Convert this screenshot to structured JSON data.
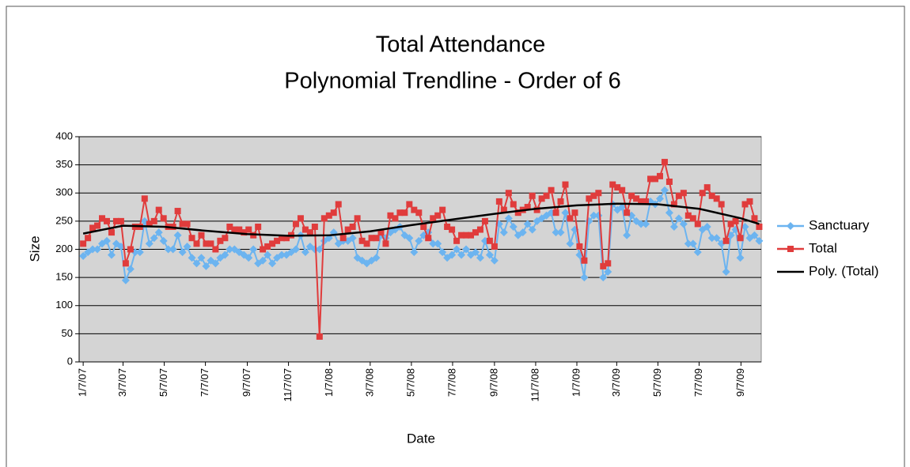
{
  "chart_data": {
    "type": "line",
    "title": "Total Attendance",
    "subtitle": "Polynomial Trendline - Order of 6",
    "x_label": "Date",
    "y_label": "Size",
    "x": [
      "1/7/07",
      "1/14/07",
      "1/21/07",
      "1/28/07",
      "2/4/07",
      "2/11/07",
      "2/18/07",
      "2/25/07",
      "3/4/07",
      "3/11/07",
      "3/18/07",
      "3/25/07",
      "4/1/07",
      "4/8/07",
      "4/15/07",
      "4/22/07",
      "4/29/07",
      "5/6/07",
      "5/13/07",
      "5/20/07",
      "5/27/07",
      "6/3/07",
      "6/10/07",
      "6/17/07",
      "6/24/07",
      "7/1/07",
      "7/8/07",
      "7/15/07",
      "7/22/07",
      "7/29/07",
      "8/5/07",
      "8/12/07",
      "8/19/07",
      "8/26/07",
      "9/2/07",
      "9/9/07",
      "9/16/07",
      "9/23/07",
      "9/30/07",
      "10/7/07",
      "10/14/07",
      "10/21/07",
      "10/28/07",
      "11/4/07",
      "11/11/07",
      "11/18/07",
      "11/25/07",
      "12/2/07",
      "12/9/07",
      "12/16/07",
      "12/23/07",
      "12/30/07",
      "1/6/08",
      "1/13/08",
      "1/20/08",
      "1/27/08",
      "2/3/08",
      "2/10/08",
      "2/17/08",
      "2/24/08",
      "3/2/08",
      "3/9/08",
      "3/16/08",
      "3/23/08",
      "3/30/08",
      "4/6/08",
      "4/13/08",
      "4/20/08",
      "4/27/08",
      "5/4/08",
      "5/11/08",
      "5/18/08",
      "5/25/08",
      "6/1/08",
      "6/8/08",
      "6/15/08",
      "6/22/08",
      "6/29/08",
      "7/6/08",
      "7/13/08",
      "7/20/08",
      "7/27/08",
      "8/3/08",
      "8/10/08",
      "8/17/08",
      "8/24/08",
      "8/31/08",
      "9/7/08",
      "9/14/08",
      "9/21/08",
      "9/28/08",
      "10/5/08",
      "10/12/08",
      "10/19/08",
      "10/26/08",
      "11/2/08",
      "11/9/08",
      "11/16/08",
      "11/23/08",
      "11/30/08",
      "12/7/08",
      "12/14/08",
      "12/21/08",
      "12/28/08",
      "1/4/09",
      "1/11/09",
      "1/18/09",
      "1/25/09",
      "2/1/09",
      "2/8/09",
      "2/15/09",
      "2/22/09",
      "3/1/09",
      "3/8/09",
      "3/15/09",
      "3/22/09",
      "3/29/09",
      "4/5/09",
      "4/12/09",
      "4/19/09",
      "4/26/09",
      "5/3/09",
      "5/10/09",
      "5/17/09",
      "5/24/09",
      "5/31/09",
      "6/7/09",
      "6/14/09",
      "6/21/09",
      "6/28/09",
      "7/5/09",
      "7/12/09",
      "7/19/09",
      "7/26/09",
      "8/2/09",
      "8/9/09",
      "8/16/09",
      "8/23/09",
      "8/30/09",
      "9/6/09",
      "9/13/09",
      "9/20/09",
      "9/27/09",
      "10/4/09"
    ],
    "series": [
      {
        "name": "Sanctuary",
        "color": "#6cb4f0",
        "marker": "diamond",
        "values": [
          188,
          195,
          200,
          200,
          210,
          215,
          190,
          210,
          205,
          145,
          165,
          195,
          195,
          250,
          210,
          220,
          230,
          215,
          200,
          200,
          225,
          195,
          205,
          185,
          175,
          185,
          170,
          180,
          175,
          185,
          190,
          200,
          200,
          195,
          190,
          185,
          200,
          175,
          180,
          190,
          175,
          185,
          190,
          190,
          195,
          200,
          225,
          195,
          205,
          200,
          200,
          215,
          220,
          230,
          210,
          215,
          215,
          220,
          185,
          180,
          175,
          180,
          185,
          225,
          220,
          230,
          235,
          240,
          225,
          220,
          195,
          215,
          225,
          230,
          210,
          210,
          195,
          185,
          190,
          200,
          190,
          200,
          190,
          195,
          185,
          215,
          190,
          180,
          245,
          230,
          255,
          240,
          225,
          230,
          245,
          235,
          250,
          255,
          260,
          265,
          230,
          230,
          265,
          210,
          235,
          190,
          150,
          250,
          260,
          260,
          150,
          160,
          280,
          270,
          275,
          225,
          260,
          250,
          245,
          245,
          285,
          280,
          290,
          305,
          265,
          240,
          255,
          245,
          210,
          210,
          195,
          235,
          240,
          220,
          220,
          210,
          160,
          225,
          235,
          185,
          240,
          220,
          225,
          215
        ]
      },
      {
        "name": "Total",
        "color": "#e03c3c",
        "marker": "square",
        "values": [
          210,
          220,
          238,
          242,
          255,
          250,
          230,
          250,
          250,
          175,
          200,
          240,
          240,
          290,
          245,
          250,
          270,
          255,
          240,
          240,
          268,
          245,
          245,
          220,
          210,
          225,
          210,
          210,
          200,
          215,
          220,
          240,
          235,
          235,
          230,
          235,
          225,
          240,
          200,
          205,
          210,
          215,
          220,
          220,
          225,
          245,
          255,
          235,
          230,
          240,
          45,
          255,
          260,
          265,
          280,
          220,
          235,
          240,
          255,
          215,
          210,
          220,
          220,
          230,
          210,
          260,
          255,
          265,
          265,
          280,
          270,
          265,
          240,
          220,
          255,
          260,
          270,
          240,
          235,
          215,
          225,
          225,
          225,
          230,
          235,
          250,
          215,
          205,
          285,
          270,
          300,
          280,
          265,
          270,
          275,
          295,
          270,
          290,
          295,
          305,
          265,
          285,
          315,
          255,
          265,
          205,
          180,
          290,
          295,
          300,
          170,
          175,
          315,
          310,
          305,
          265,
          295,
          290,
          285,
          285,
          325,
          325,
          330,
          355,
          320,
          280,
          295,
          300,
          260,
          255,
          245,
          300,
          310,
          295,
          290,
          280,
          215,
          245,
          250,
          220,
          280,
          285,
          255,
          240
        ]
      },
      {
        "name": "Poly. (Total)",
        "color": "#000000",
        "marker": "none",
        "x": [
          "1/7/07",
          "3/7/07",
          "5/7/07",
          "7/7/07",
          "9/7/07",
          "11/7/07",
          "1/7/08",
          "3/7/08",
          "5/7/08",
          "7/7/08",
          "9/7/08",
          "11/7/08",
          "1/7/09",
          "3/7/09",
          "5/7/09",
          "7/7/09",
          "9/7/09",
          "10/4/09"
        ],
        "values": [
          228,
          242,
          240,
          233,
          227,
          224,
          225,
          232,
          243,
          253,
          263,
          272,
          278,
          281,
          280,
          272,
          255,
          245
        ]
      }
    ],
    "xlim": [
      "1/1/07",
      "10/7/09"
    ],
    "xticks": [
      "1/7/07",
      "3/7/07",
      "5/7/07",
      "7/7/07",
      "9/7/07",
      "11/7/07",
      "1/7/08",
      "3/7/08",
      "5/7/08",
      "7/7/08",
      "9/7/08",
      "11/7/08",
      "1/7/09",
      "3/7/09",
      "5/7/09",
      "7/7/09",
      "9/7/09"
    ],
    "ylim": [
      0,
      400
    ],
    "yticks": [
      0,
      50,
      100,
      150,
      200,
      250,
      300,
      350,
      400
    ],
    "grid": true,
    "legend": "right"
  }
}
